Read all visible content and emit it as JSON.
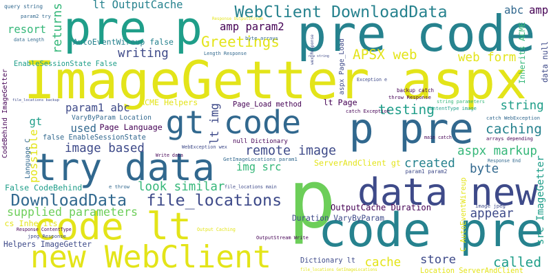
{
  "palette": {
    "yellow": "#e3e419",
    "lime": "#6cce59",
    "green": "#35b779",
    "teal": "#1f9e89",
    "cyan": "#26828e",
    "blue": "#31688e",
    "indigo": "#3e4a89",
    "purple": "#482878",
    "dark": "#440154"
  },
  "words": [
    {
      "text": "ImageGetter aspx",
      "color": "yellow"
    },
    {
      "text": "p",
      "color": "lime"
    },
    {
      "text": "pre code",
      "color": "cyan"
    },
    {
      "text": "code pre",
      "color": "cyan"
    },
    {
      "text": "pre p",
      "color": "teal"
    },
    {
      "text": "p pre",
      "color": "blue"
    },
    {
      "text": "try data",
      "color": "blue"
    },
    {
      "text": "data new",
      "color": "indigo"
    },
    {
      "text": "code lt",
      "color": "yellow"
    },
    {
      "text": "new WebClient",
      "color": "yellow"
    },
    {
      "text": "gt code",
      "color": "blue"
    },
    {
      "text": "WebClient DownloadData",
      "color": "cyan"
    },
    {
      "text": "DownloadData",
      "color": "blue"
    },
    {
      "text": "file_locations",
      "color": "indigo"
    },
    {
      "text": "lt OutputCache",
      "color": "cyan"
    },
    {
      "text": "Greetings",
      "color": "yellow"
    },
    {
      "text": "APSX web",
      "color": "yellow"
    },
    {
      "text": "web form",
      "color": "yellow"
    },
    {
      "text": "testing",
      "color": "teal"
    },
    {
      "text": "string",
      "color": "teal"
    },
    {
      "text": "caching",
      "color": "cyan"
    },
    {
      "text": "writing",
      "color": "indigo"
    },
    {
      "text": "param1 abc",
      "color": "indigo"
    },
    {
      "text": "amp param2",
      "color": "dark"
    },
    {
      "text": "abc",
      "color": "blue"
    },
    {
      "text": "amp",
      "color": "dark"
    },
    {
      "text": "resort",
      "color": "green"
    },
    {
      "text": "returns",
      "color": "green"
    },
    {
      "text": "remote image",
      "color": "indigo"
    },
    {
      "text": "image based",
      "color": "indigo"
    },
    {
      "text": "img src",
      "color": "green"
    },
    {
      "text": "aspx markup",
      "color": "green"
    },
    {
      "text": "created",
      "color": "cyan"
    },
    {
      "text": "byte",
      "color": "blue"
    },
    {
      "text": "used",
      "color": "blue"
    },
    {
      "text": "gt",
      "color": "teal"
    },
    {
      "text": "lt img",
      "color": "indigo"
    },
    {
      "text": "possible",
      "color": "yellow"
    },
    {
      "text": "look similar",
      "color": "green"
    },
    {
      "text": "supplied parameters",
      "color": "lime"
    },
    {
      "text": "OutputCache Duration",
      "color": "dark"
    },
    {
      "text": "appear",
      "color": "indigo"
    },
    {
      "text": "src ImageGetter",
      "color": "teal"
    },
    {
      "text": "cache",
      "color": "yellow"
    },
    {
      "text": "store",
      "color": "indigo"
    },
    {
      "text": "called",
      "color": "teal"
    },
    {
      "text": "cs Inherits",
      "color": "yellow"
    },
    {
      "text": "Location ServerAndClient",
      "color": "yellow"
    },
    {
      "text": "Dictionary lt",
      "color": "indigo"
    },
    {
      "text": "AutoEventWireup false",
      "color": "cyan"
    },
    {
      "text": "EnableSessionState False",
      "color": "teal"
    },
    {
      "text": "ACME Helpers",
      "color": "yellow"
    },
    {
      "text": "VaryByParam Location",
      "color": "blue"
    },
    {
      "text": "Page Language",
      "color": "dark"
    },
    {
      "text": "false EnableSessionState",
      "color": "blue"
    },
    {
      "text": "Page_Load method",
      "color": "dark"
    },
    {
      "text": "lt Page",
      "color": "dark"
    },
    {
      "text": "null Dictionary",
      "color": "dark"
    },
    {
      "text": "ServerAndClient gt",
      "color": "yellow"
    },
    {
      "text": "False CodeBehind",
      "color": "teal"
    },
    {
      "text": "Duration VaryByParam",
      "color": "indigo"
    },
    {
      "text": "Helpers ImageGetter",
      "color": "indigo"
    },
    {
      "text": "C AutoEventWireup",
      "color": "yellow"
    },
    {
      "text": "CodeBehind ImageGetter",
      "color": "dark"
    },
    {
      "text": "Inherits ACME",
      "color": "green"
    },
    {
      "text": "data null",
      "color": "indigo"
    },
    {
      "text": "aspx Page_Load",
      "color": "indigo"
    },
    {
      "text": "Language C",
      "color": "blue"
    },
    {
      "text": "query string",
      "color": "blue"
    },
    {
      "text": "param2 try",
      "color": "blue"
    },
    {
      "text": "data Length",
      "color": "blue"
    },
    {
      "text": "Length Response",
      "color": "blue"
    },
    {
      "text": "Response OutputStream",
      "color": "yellow"
    },
    {
      "text": "byte arrays",
      "color": "blue"
    },
    {
      "text": "main catch",
      "color": "dark"
    },
    {
      "text": "arrays depending",
      "color": "dark"
    },
    {
      "text": "Exception e",
      "color": "indigo"
    },
    {
      "text": "backup catch",
      "color": "dark"
    },
    {
      "text": "throw Response",
      "color": "dark"
    },
    {
      "text": "catch Exception",
      "color": "dark"
    },
    {
      "text": "string parameters",
      "color": "green"
    },
    {
      "text": "ContentType image",
      "color": "teal"
    },
    {
      "text": "catch WebException",
      "color": "blue"
    },
    {
      "text": "new string",
      "color": "indigo"
    },
    {
      "text": "file_locations backup",
      "color": "indigo"
    },
    {
      "text": "Write data",
      "color": "dark"
    },
    {
      "text": "WebException wex",
      "color": "indigo"
    },
    {
      "text": "GetImageLocations param1",
      "color": "blue"
    },
    {
      "text": "file_locations main",
      "color": "indigo"
    },
    {
      "text": "e throw",
      "color": "blue"
    },
    {
      "text": "param1 param2",
      "color": "indigo"
    },
    {
      "text": "Response End",
      "color": "blue"
    },
    {
      "text": "image jpeg",
      "color": "indigo"
    },
    {
      "text": "Response ContentType",
      "color": "dark"
    },
    {
      "text": "jpeg Response",
      "color": "indigo"
    },
    {
      "text": "OutputStream Write",
      "color": "dark"
    },
    {
      "text": "Output Caching",
      "color": "yellow"
    },
    {
      "text": "file_locations GetImageLocations",
      "color": "yellow"
    },
    {
      "text": "wex Response",
      "color": "indigo"
    }
  ]
}
